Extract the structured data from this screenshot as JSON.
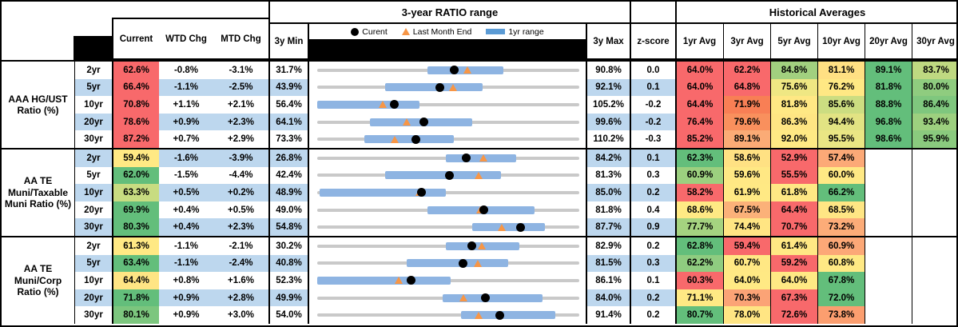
{
  "header": {
    "range_title": "3-year RATIO range",
    "hist_title": "Historical Averages",
    "col_current": "Current",
    "col_wtd": "WTD Chg",
    "col_mtd": "MTD Chg",
    "col_min": "3y Min",
    "col_max": "3y Max",
    "col_z": "z-score",
    "avg_cols": [
      "1yr Avg",
      "3yr Avg",
      "5yr Avg",
      "10yr Avg",
      "20yr Avg",
      "30yr Avg"
    ],
    "legend": {
      "current_label": "Curent",
      "last_month_label": "Last Month End",
      "range_label": "1yr range"
    }
  },
  "colors": {
    "stripe": "#BDD7EE",
    "bar_blue": "#8EB4E2",
    "legend_blue": "#5B9BD5",
    "track_gray": "#C9C9C9",
    "triangle_orange": "#F79646",
    "dot_black": "#000000",
    "heat_red": "#F8696B",
    "heat_yellow": "#FFEB84",
    "heat_green": "#63BE7B"
  },
  "groups": [
    {
      "label": "AAA HG/UST Ratio (%)",
      "rows": [
        {
          "tenor": "2yr",
          "current": "62.6%",
          "current_bg": "#F8696B",
          "wtd": "-0.8%",
          "mtd": "-3.1%",
          "min": "31.7%",
          "max": "90.8%",
          "z": "0.0",
          "bar": [
            0.42,
            0.71
          ],
          "dot": 0.523,
          "tri": 0.575,
          "avgs": [
            {
              "v": "64.0%",
              "bg": "#F8696B"
            },
            {
              "v": "62.2%",
              "bg": "#F8696B"
            },
            {
              "v": "84.8%",
              "bg": "#A2D07F"
            },
            {
              "v": "81.1%",
              "bg": "#FFE083"
            },
            {
              "v": "89.1%",
              "bg": "#63BE7B"
            },
            {
              "v": "83.7%",
              "bg": "#BFD981"
            }
          ]
        },
        {
          "tenor": "5yr",
          "current": "66.4%",
          "current_bg": "#F8696B",
          "wtd": "-1.1%",
          "mtd": "-2.5%",
          "min": "43.9%",
          "max": "92.1%",
          "z": "0.1",
          "bar": [
            0.26,
            0.63
          ],
          "dot": 0.467,
          "tri": 0.519,
          "avgs": [
            {
              "v": "64.0%",
              "bg": "#F8696B"
            },
            {
              "v": "64.8%",
              "bg": "#F8696B"
            },
            {
              "v": "75.6%",
              "bg": "#EFE783"
            },
            {
              "v": "76.2%",
              "bg": "#FFE884"
            },
            {
              "v": "81.8%",
              "bg": "#63BE7B"
            },
            {
              "v": "80.0%",
              "bg": "#8FCC7F"
            }
          ]
        },
        {
          "tenor": "10yr",
          "current": "70.8%",
          "current_bg": "#F8696B",
          "wtd": "+1.1%",
          "mtd": "+2.1%",
          "min": "56.4%",
          "max": "105.2%",
          "z": "-0.2",
          "bar": [
            0.0,
            0.39
          ],
          "dot": 0.295,
          "tri": 0.252,
          "avgs": [
            {
              "v": "64.4%",
              "bg": "#F8696B"
            },
            {
              "v": "71.9%",
              "bg": "#F87F55"
            },
            {
              "v": "81.8%",
              "bg": "#FFE884"
            },
            {
              "v": "85.6%",
              "bg": "#CCDD81"
            },
            {
              "v": "88.8%",
              "bg": "#63BE7B"
            },
            {
              "v": "86.4%",
              "bg": "#7FC77E"
            }
          ]
        },
        {
          "tenor": "20yr",
          "current": "78.6%",
          "current_bg": "#F8696B",
          "wtd": "+0.9%",
          "mtd": "+2.3%",
          "min": "64.1%",
          "max": "99.6%",
          "z": "-0.2",
          "bar": [
            0.2,
            0.59
          ],
          "dot": 0.408,
          "tri": 0.344,
          "avgs": [
            {
              "v": "76.4%",
              "bg": "#F8696B"
            },
            {
              "v": "79.6%",
              "bg": "#F9905D"
            },
            {
              "v": "86.3%",
              "bg": "#FFE583"
            },
            {
              "v": "94.4%",
              "bg": "#E2E383"
            },
            {
              "v": "96.8%",
              "bg": "#63BE7B"
            },
            {
              "v": "93.4%",
              "bg": "#9DD07F"
            }
          ]
        },
        {
          "tenor": "30yr",
          "current": "87.2%",
          "current_bg": "#F8696B",
          "wtd": "+0.7%",
          "mtd": "+2.9%",
          "min": "73.3%",
          "max": "110.2%",
          "z": "-0.3",
          "bar": [
            0.18,
            0.52
          ],
          "dot": 0.377,
          "tri": 0.298,
          "avgs": [
            {
              "v": "85.2%",
              "bg": "#F8696B"
            },
            {
              "v": "89.1%",
              "bg": "#FBAB76"
            },
            {
              "v": "92.0%",
              "bg": "#FFE984"
            },
            {
              "v": "95.5%",
              "bg": "#EAE684"
            },
            {
              "v": "98.6%",
              "bg": "#63BE7B"
            },
            {
              "v": "95.9%",
              "bg": "#8ACA7E"
            }
          ]
        }
      ]
    },
    {
      "label": "AA TE Muni/Taxable Muni Ratio (%)",
      "rows": [
        {
          "tenor": "2yr",
          "current": "59.4%",
          "current_bg": "#FFE984",
          "wtd": "-1.6%",
          "mtd": "-3.9%",
          "min": "26.8%",
          "max": "84.2%",
          "z": "0.1",
          "bar": [
            0.49,
            0.76
          ],
          "dot": 0.568,
          "tri": 0.636,
          "avgs": [
            {
              "v": "62.3%",
              "bg": "#63BE7B"
            },
            {
              "v": "58.6%",
              "bg": "#FFE183"
            },
            {
              "v": "52.9%",
              "bg": "#F8696B"
            },
            {
              "v": "57.4%",
              "bg": "#FCA977"
            },
            {
              "v": "",
              "bg": ""
            },
            {
              "v": "",
              "bg": ""
            }
          ]
        },
        {
          "tenor": "5yr",
          "current": "62.0%",
          "current_bg": "#63BE7B",
          "wtd": "-1.5%",
          "mtd": "-4.4%",
          "min": "42.4%",
          "max": "81.3%",
          "z": "0.3",
          "bar": [
            0.26,
            0.7
          ],
          "dot": 0.504,
          "tri": 0.617,
          "avgs": [
            {
              "v": "60.9%",
              "bg": "#9CD07F"
            },
            {
              "v": "59.6%",
              "bg": "#FFE884"
            },
            {
              "v": "55.5%",
              "bg": "#F8696B"
            },
            {
              "v": "60.0%",
              "bg": "#FFE984"
            },
            {
              "v": "",
              "bg": ""
            },
            {
              "v": "",
              "bg": ""
            }
          ]
        },
        {
          "tenor": "10yr",
          "current": "63.3%",
          "current_bg": "#C8DC81",
          "wtd": "+0.5%",
          "mtd": "+0.2%",
          "min": "48.9%",
          "max": "85.0%",
          "z": "0.2",
          "bar": [
            0.01,
            0.49
          ],
          "dot": 0.399,
          "tri": 0.393,
          "avgs": [
            {
              "v": "58.2%",
              "bg": "#F8696B"
            },
            {
              "v": "61.9%",
              "bg": "#FFE984"
            },
            {
              "v": "61.8%",
              "bg": "#FFE884"
            },
            {
              "v": "66.2%",
              "bg": "#63BE7B"
            },
            {
              "v": "",
              "bg": ""
            },
            {
              "v": "",
              "bg": ""
            }
          ]
        },
        {
          "tenor": "20yr",
          "current": "69.9%",
          "current_bg": "#63BE7B",
          "wtd": "+0.4%",
          "mtd": "+0.5%",
          "min": "49.0%",
          "max": "81.8%",
          "z": "0.4",
          "bar": [
            0.42,
            0.83
          ],
          "dot": 0.637,
          "tri": 0.622,
          "avgs": [
            {
              "v": "68.6%",
              "bg": "#FFE984"
            },
            {
              "v": "67.5%",
              "bg": "#FBB179"
            },
            {
              "v": "64.4%",
              "bg": "#F8696B"
            },
            {
              "v": "68.5%",
              "bg": "#FFE684"
            },
            {
              "v": "",
              "bg": ""
            },
            {
              "v": "",
              "bg": ""
            }
          ]
        },
        {
          "tenor": "30yr",
          "current": "80.3%",
          "current_bg": "#63BE7B",
          "wtd": "+0.4%",
          "mtd": "+2.3%",
          "min": "54.8%",
          "max": "87.7%",
          "z": "0.9",
          "bar": [
            0.59,
            0.87
          ],
          "dot": 0.775,
          "tri": 0.705,
          "avgs": [
            {
              "v": "77.7%",
              "bg": "#A5D380"
            },
            {
              "v": "74.4%",
              "bg": "#FFE583"
            },
            {
              "v": "70.7%",
              "bg": "#F8696B"
            },
            {
              "v": "73.2%",
              "bg": "#FCAC78"
            },
            {
              "v": "",
              "bg": ""
            },
            {
              "v": "",
              "bg": ""
            }
          ]
        }
      ]
    },
    {
      "label": "AA TE Muni/Corp Ratio (%)",
      "rows": [
        {
          "tenor": "2yr",
          "current": "61.3%",
          "current_bg": "#FFE984",
          "wtd": "-1.1%",
          "mtd": "-2.1%",
          "min": "30.2%",
          "max": "82.9%",
          "z": "0.2",
          "bar": [
            0.49,
            0.77
          ],
          "dot": 0.59,
          "tri": 0.63,
          "avgs": [
            {
              "v": "62.8%",
              "bg": "#63BE7B"
            },
            {
              "v": "59.4%",
              "bg": "#F8696B"
            },
            {
              "v": "61.4%",
              "bg": "#FFE884"
            },
            {
              "v": "60.9%",
              "bg": "#FCA877"
            },
            {
              "v": "",
              "bg": ""
            },
            {
              "v": "",
              "bg": ""
            }
          ]
        },
        {
          "tenor": "5yr",
          "current": "63.4%",
          "current_bg": "#63BE7B",
          "wtd": "-1.1%",
          "mtd": "-2.4%",
          "min": "40.8%",
          "max": "81.5%",
          "z": "0.3",
          "bar": [
            0.34,
            0.73
          ],
          "dot": 0.555,
          "tri": 0.614,
          "avgs": [
            {
              "v": "62.2%",
              "bg": "#8FCC80"
            },
            {
              "v": "60.7%",
              "bg": "#FFE884"
            },
            {
              "v": "59.2%",
              "bg": "#F8696B"
            },
            {
              "v": "60.8%",
              "bg": "#FFE984"
            },
            {
              "v": "",
              "bg": ""
            },
            {
              "v": "",
              "bg": ""
            }
          ]
        },
        {
          "tenor": "10yr",
          "current": "64.4%",
          "current_bg": "#FFE584",
          "wtd": "+0.8%",
          "mtd": "+1.6%",
          "min": "52.3%",
          "max": "86.1%",
          "z": "0.1",
          "bar": [
            0.0,
            0.51
          ],
          "dot": 0.358,
          "tri": 0.311,
          "avgs": [
            {
              "v": "60.3%",
              "bg": "#F8696B"
            },
            {
              "v": "64.0%",
              "bg": "#FFE984"
            },
            {
              "v": "64.0%",
              "bg": "#FFE984"
            },
            {
              "v": "67.8%",
              "bg": "#63BE7B"
            },
            {
              "v": "",
              "bg": ""
            },
            {
              "v": "",
              "bg": ""
            }
          ]
        },
        {
          "tenor": "20yr",
          "current": "71.8%",
          "current_bg": "#63BE7B",
          "wtd": "+0.9%",
          "mtd": "+2.8%",
          "min": "49.9%",
          "max": "84.0%",
          "z": "0.2",
          "bar": [
            0.48,
            0.86
          ],
          "dot": 0.642,
          "tri": 0.56,
          "avgs": [
            {
              "v": "71.1%",
              "bg": "#FFE984"
            },
            {
              "v": "70.3%",
              "bg": "#FBA376"
            },
            {
              "v": "67.3%",
              "bg": "#F8696B"
            },
            {
              "v": "72.0%",
              "bg": "#63BE7B"
            },
            {
              "v": "",
              "bg": ""
            },
            {
              "v": "",
              "bg": ""
            }
          ]
        },
        {
          "tenor": "30yr",
          "current": "80.1%",
          "current_bg": "#7CC67E",
          "wtd": "+0.9%",
          "mtd": "+3.0%",
          "min": "54.0%",
          "max": "91.4%",
          "z": "0.2",
          "bar": [
            0.55,
            0.91
          ],
          "dot": 0.698,
          "tri": 0.618,
          "avgs": [
            {
              "v": "80.7%",
              "bg": "#63BE7B"
            },
            {
              "v": "78.0%",
              "bg": "#FFE583"
            },
            {
              "v": "72.6%",
              "bg": "#F8696B"
            },
            {
              "v": "73.8%",
              "bg": "#FB9E6F"
            },
            {
              "v": "",
              "bg": ""
            },
            {
              "v": "",
              "bg": ""
            }
          ]
        }
      ]
    }
  ],
  "chart_data": {
    "type": "table",
    "title": "3-year RATIO range with Historical Averages",
    "columns": [
      "Group",
      "Tenor",
      "Current",
      "WTD Chg",
      "MTD Chg",
      "3y Min",
      "3y Max",
      "z-score",
      "1yr Avg",
      "3yr Avg",
      "5yr Avg",
      "10yr Avg",
      "20yr Avg",
      "30yr Avg"
    ],
    "rows": [
      [
        "AAA HG/UST Ratio (%)",
        "2yr",
        62.6,
        -0.8,
        -3.1,
        31.7,
        90.8,
        0.0,
        64.0,
        62.2,
        84.8,
        81.1,
        89.1,
        83.7
      ],
      [
        "AAA HG/UST Ratio (%)",
        "5yr",
        66.4,
        -1.1,
        -2.5,
        43.9,
        92.1,
        0.1,
        64.0,
        64.8,
        75.6,
        76.2,
        81.8,
        80.0
      ],
      [
        "AAA HG/UST Ratio (%)",
        "10yr",
        70.8,
        1.1,
        2.1,
        56.4,
        105.2,
        -0.2,
        64.4,
        71.9,
        81.8,
        85.6,
        88.8,
        86.4
      ],
      [
        "AAA HG/UST Ratio (%)",
        "20yr",
        78.6,
        0.9,
        2.3,
        64.1,
        99.6,
        -0.2,
        76.4,
        79.6,
        86.3,
        94.4,
        96.8,
        93.4
      ],
      [
        "AAA HG/UST Ratio (%)",
        "30yr",
        87.2,
        0.7,
        2.9,
        73.3,
        110.2,
        -0.3,
        85.2,
        89.1,
        92.0,
        95.5,
        98.6,
        95.9
      ],
      [
        "AA TE Muni/Taxable Muni Ratio (%)",
        "2yr",
        59.4,
        -1.6,
        -3.9,
        26.8,
        84.2,
        0.1,
        62.3,
        58.6,
        52.9,
        57.4,
        null,
        null
      ],
      [
        "AA TE Muni/Taxable Muni Ratio (%)",
        "5yr",
        62.0,
        -1.5,
        -4.4,
        42.4,
        81.3,
        0.3,
        60.9,
        59.6,
        55.5,
        60.0,
        null,
        null
      ],
      [
        "AA TE Muni/Taxable Muni Ratio (%)",
        "10yr",
        63.3,
        0.5,
        0.2,
        48.9,
        85.0,
        0.2,
        58.2,
        61.9,
        61.8,
        66.2,
        null,
        null
      ],
      [
        "AA TE Muni/Taxable Muni Ratio (%)",
        "20yr",
        69.9,
        0.4,
        0.5,
        49.0,
        81.8,
        0.4,
        68.6,
        67.5,
        64.4,
        68.5,
        null,
        null
      ],
      [
        "AA TE Muni/Taxable Muni Ratio (%)",
        "30yr",
        80.3,
        0.4,
        2.3,
        54.8,
        87.7,
        0.9,
        77.7,
        74.4,
        70.7,
        73.2,
        null,
        null
      ],
      [
        "AA TE Muni/Corp Ratio (%)",
        "2yr",
        61.3,
        -1.1,
        -2.1,
        30.2,
        82.9,
        0.2,
        62.8,
        59.4,
        61.4,
        60.9,
        null,
        null
      ],
      [
        "AA TE Muni/Corp Ratio (%)",
        "5yr",
        63.4,
        -1.1,
        -2.4,
        40.8,
        81.5,
        0.3,
        62.2,
        60.7,
        59.2,
        60.8,
        null,
        null
      ],
      [
        "AA TE Muni/Corp Ratio (%)",
        "10yr",
        64.4,
        0.8,
        1.6,
        52.3,
        86.1,
        0.1,
        60.3,
        64.0,
        64.0,
        67.8,
        null,
        null
      ],
      [
        "AA TE Muni/Corp Ratio (%)",
        "20yr",
        71.8,
        0.9,
        2.8,
        49.9,
        84.0,
        0.2,
        71.1,
        70.3,
        67.3,
        72.0,
        null,
        null
      ],
      [
        "AA TE Muni/Corp Ratio (%)",
        "30yr",
        80.1,
        0.9,
        3.0,
        54.0,
        91.4,
        0.2,
        80.7,
        78.0,
        72.6,
        73.8,
        null,
        null
      ]
    ],
    "embedded_chart": {
      "type": "range-dot-plot",
      "legend": [
        "Curent (black dot)",
        "Last Month End (orange triangle)",
        "1yr range (blue bar)"
      ],
      "x_scale": "each row spans its own 3y Min to 3y Max",
      "notes": "gray track = 3-year range; blue bar = trailing 1-year range; dot = current ratio; triangle = last month-end ratio"
    }
  }
}
